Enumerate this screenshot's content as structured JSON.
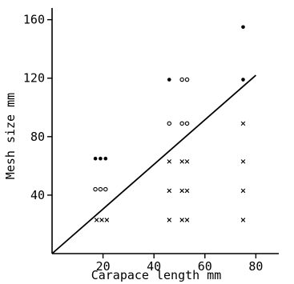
{
  "chart_data": {
    "type": "scatter",
    "xlabel": "Carapace length mm",
    "ylabel": "Mesh size mm",
    "xlim": [
      0,
      89
    ],
    "ylim": [
      0,
      168
    ],
    "x_ticks": [
      20,
      40,
      60,
      80
    ],
    "y_ticks": [
      40,
      80,
      120,
      160
    ],
    "x_tick_labels": [
      "20",
      "40",
      "60",
      "80"
    ],
    "y_tick_labels": [
      "40",
      "80",
      "120",
      "160"
    ],
    "grid": false,
    "legend": "none",
    "series": [
      {
        "marker": "dot",
        "points": [
          [
            17,
            65
          ],
          [
            19,
            65
          ],
          [
            21,
            65
          ],
          [
            46,
            119
          ],
          [
            75,
            155
          ],
          [
            75,
            119
          ]
        ]
      },
      {
        "marker": "circle",
        "points": [
          [
            17,
            44
          ],
          [
            19,
            44
          ],
          [
            21,
            44
          ],
          [
            46,
            89
          ],
          [
            51,
            119
          ],
          [
            53,
            119
          ],
          [
            51,
            89
          ],
          [
            53,
            89
          ]
        ]
      },
      {
        "marker": "cross",
        "points": [
          [
            17.5,
            23
          ],
          [
            19.5,
            23
          ],
          [
            21.5,
            23
          ],
          [
            46,
            63
          ],
          [
            46,
            43
          ],
          [
            46,
            23
          ],
          [
            51,
            63
          ],
          [
            53,
            63
          ],
          [
            51,
            43
          ],
          [
            53,
            43
          ],
          [
            51,
            23
          ],
          [
            53,
            23
          ],
          [
            75,
            89
          ],
          [
            75,
            63
          ],
          [
            75,
            43
          ],
          [
            75,
            23
          ]
        ]
      }
    ],
    "trend_line": {
      "x": [
        0,
        80
      ],
      "y": [
        0,
        122
      ]
    }
  }
}
